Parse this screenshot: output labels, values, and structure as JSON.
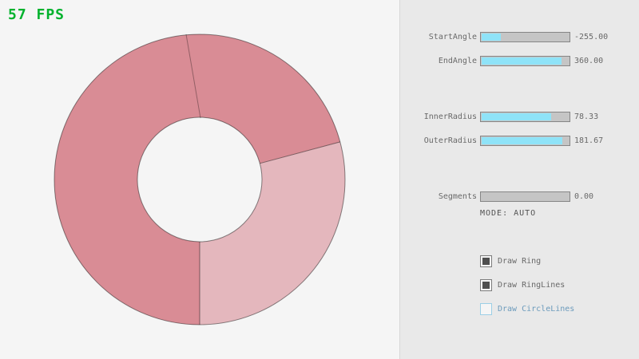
{
  "app": {
    "fps_label": "57 FPS",
    "fps_color": "#00b22d"
  },
  "ring": {
    "major_color": "#d98c95",
    "minor_color": "#e4b7bd",
    "outline_color": "rgba(0,0,0,0.45)"
  },
  "panel": {
    "accent_fill": "#8fe3f8",
    "sliders": [
      {
        "label": "StartAngle",
        "value": "-255.00",
        "fill_pct": 22
      },
      {
        "label": "EndAngle",
        "value": "360.00",
        "fill_pct": 90
      },
      {
        "label": "InnerRadius",
        "value": "78.33",
        "fill_pct": 78
      },
      {
        "label": "OuterRadius",
        "value": "181.67",
        "fill_pct": 91
      },
      {
        "label": "Segments",
        "value": "0.00",
        "fill_pct": 0
      }
    ],
    "mode_label": "MODE: AUTO",
    "checkboxes": [
      {
        "label": "Draw Ring",
        "checked": true
      },
      {
        "label": "Draw RingLines",
        "checked": true
      },
      {
        "label": "Draw CircleLines",
        "checked": false
      }
    ],
    "unchecked_accent": "#6c9bbc"
  }
}
